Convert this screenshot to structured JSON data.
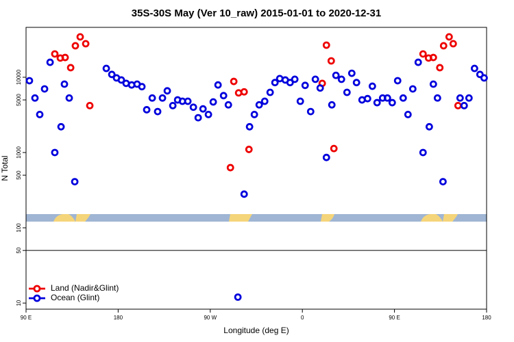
{
  "chart_data": {
    "type": "scatter",
    "title": "35S-30S May (Ver 10_raw)   2015-01-01 to 2020-12-31",
    "xlabel": "Longitude (deg E)",
    "ylabel": "N Total",
    "xlim": [
      90,
      540
    ],
    "ylim": [
      8.3,
      46000
    ],
    "log_y": true,
    "xticks": [
      {
        "value": 90,
        "label": "90 E"
      },
      180,
      {
        "value": 270,
        "label": "90 W"
      },
      {
        "value": 360,
        "label": "0"
      },
      {
        "value": 450,
        "label": "90 E"
      },
      {
        "value": 540,
        "label": "180"
      }
    ],
    "yticks": [
      10,
      50,
      100,
      500,
      1000,
      5000,
      10000
    ],
    "legend": "lower left",
    "series": [
      {
        "name": "Land (Nadir&Glint)",
        "color": "#ee0000",
        "x": [
          118.1,
          123.5,
          128.2,
          133.6,
          138.2,
          142.9,
          148.3,
          152.3,
          289.7,
          293.0,
          297.7,
          303.1,
          307.8,
          379.4,
          383.5,
          388.2,
          390.8,
          477.9,
          483.3,
          488.0,
          494.3,
          498.0,
          503.4,
          507.4,
          512.1
        ],
        "values": [
          20400,
          18000,
          18300,
          13400,
          26200,
          34400,
          27900,
          4200,
          630,
          8800,
          6200,
          6400,
          1100,
          8300,
          26700,
          16500,
          1130,
          20400,
          18000,
          18300,
          13400,
          26200,
          34400,
          27900,
          4200
        ]
      },
      {
        "name": "Ocean (Glint)",
        "color": "#0000dd",
        "x": [
          93.3,
          98.7,
          103.4,
          108.1,
          113.5,
          118.1,
          124.2,
          127.5,
          132.2,
          137.6,
          168.4,
          173.8,
          178.4,
          183.1,
          187.8,
          193.2,
          198.5,
          203.2,
          207.9,
          213.3,
          218.6,
          223.3,
          228.0,
          233.4,
          238.1,
          242.8,
          248.1,
          253.5,
          258.2,
          262.9,
          268.2,
          272.9,
          277.6,
          283.0,
          287.7,
          303.1,
          308.4,
          313.1,
          317.8,
          323.2,
          328.5,
          333.2,
          337.9,
          343.3,
          348.0,
          352.6,
          358.0,
          362.7,
          368.1,
          372.7,
          377.4,
          383.5,
          388.8,
          392.8,
          398.2,
          403.6,
          408.3,
          412.9,
          418.3,
          423.7,
          428.4,
          433.0,
          438.4,
          443.1,
          447.8,
          453.1,
          458.5,
          463.2,
          467.9,
          473.2,
          477.9,
          484.0,
          488.0,
          492.0,
          497.4,
          514.1,
          518.1,
          522.8,
          528.2,
          533.5,
          537.6,
          297.0
        ],
        "values": [
          9000,
          5300,
          3200,
          7000,
          15800,
          1000,
          2200,
          8100,
          5300,
          410,
          13100,
          10900,
          9800,
          9200,
          8300,
          7900,
          8100,
          7500,
          3700,
          5300,
          3500,
          5300,
          6600,
          4200,
          5000,
          4800,
          4800,
          4000,
          2900,
          3800,
          3200,
          4700,
          7900,
          5700,
          4300,
          280,
          2200,
          3200,
          4300,
          4800,
          6300,
          8500,
          9600,
          9200,
          8500,
          9400,
          4800,
          7800,
          3500,
          9400,
          7200,
          860,
          4300,
          10600,
          9400,
          6300,
          11300,
          8500,
          5000,
          5200,
          7600,
          4600,
          5300,
          5300,
          4600,
          9000,
          5300,
          3200,
          7000,
          15800,
          1000,
          2200,
          8100,
          5300,
          410,
          5300,
          4200,
          5300,
          13100,
          10900,
          9800,
          12
        ]
      }
    ]
  }
}
